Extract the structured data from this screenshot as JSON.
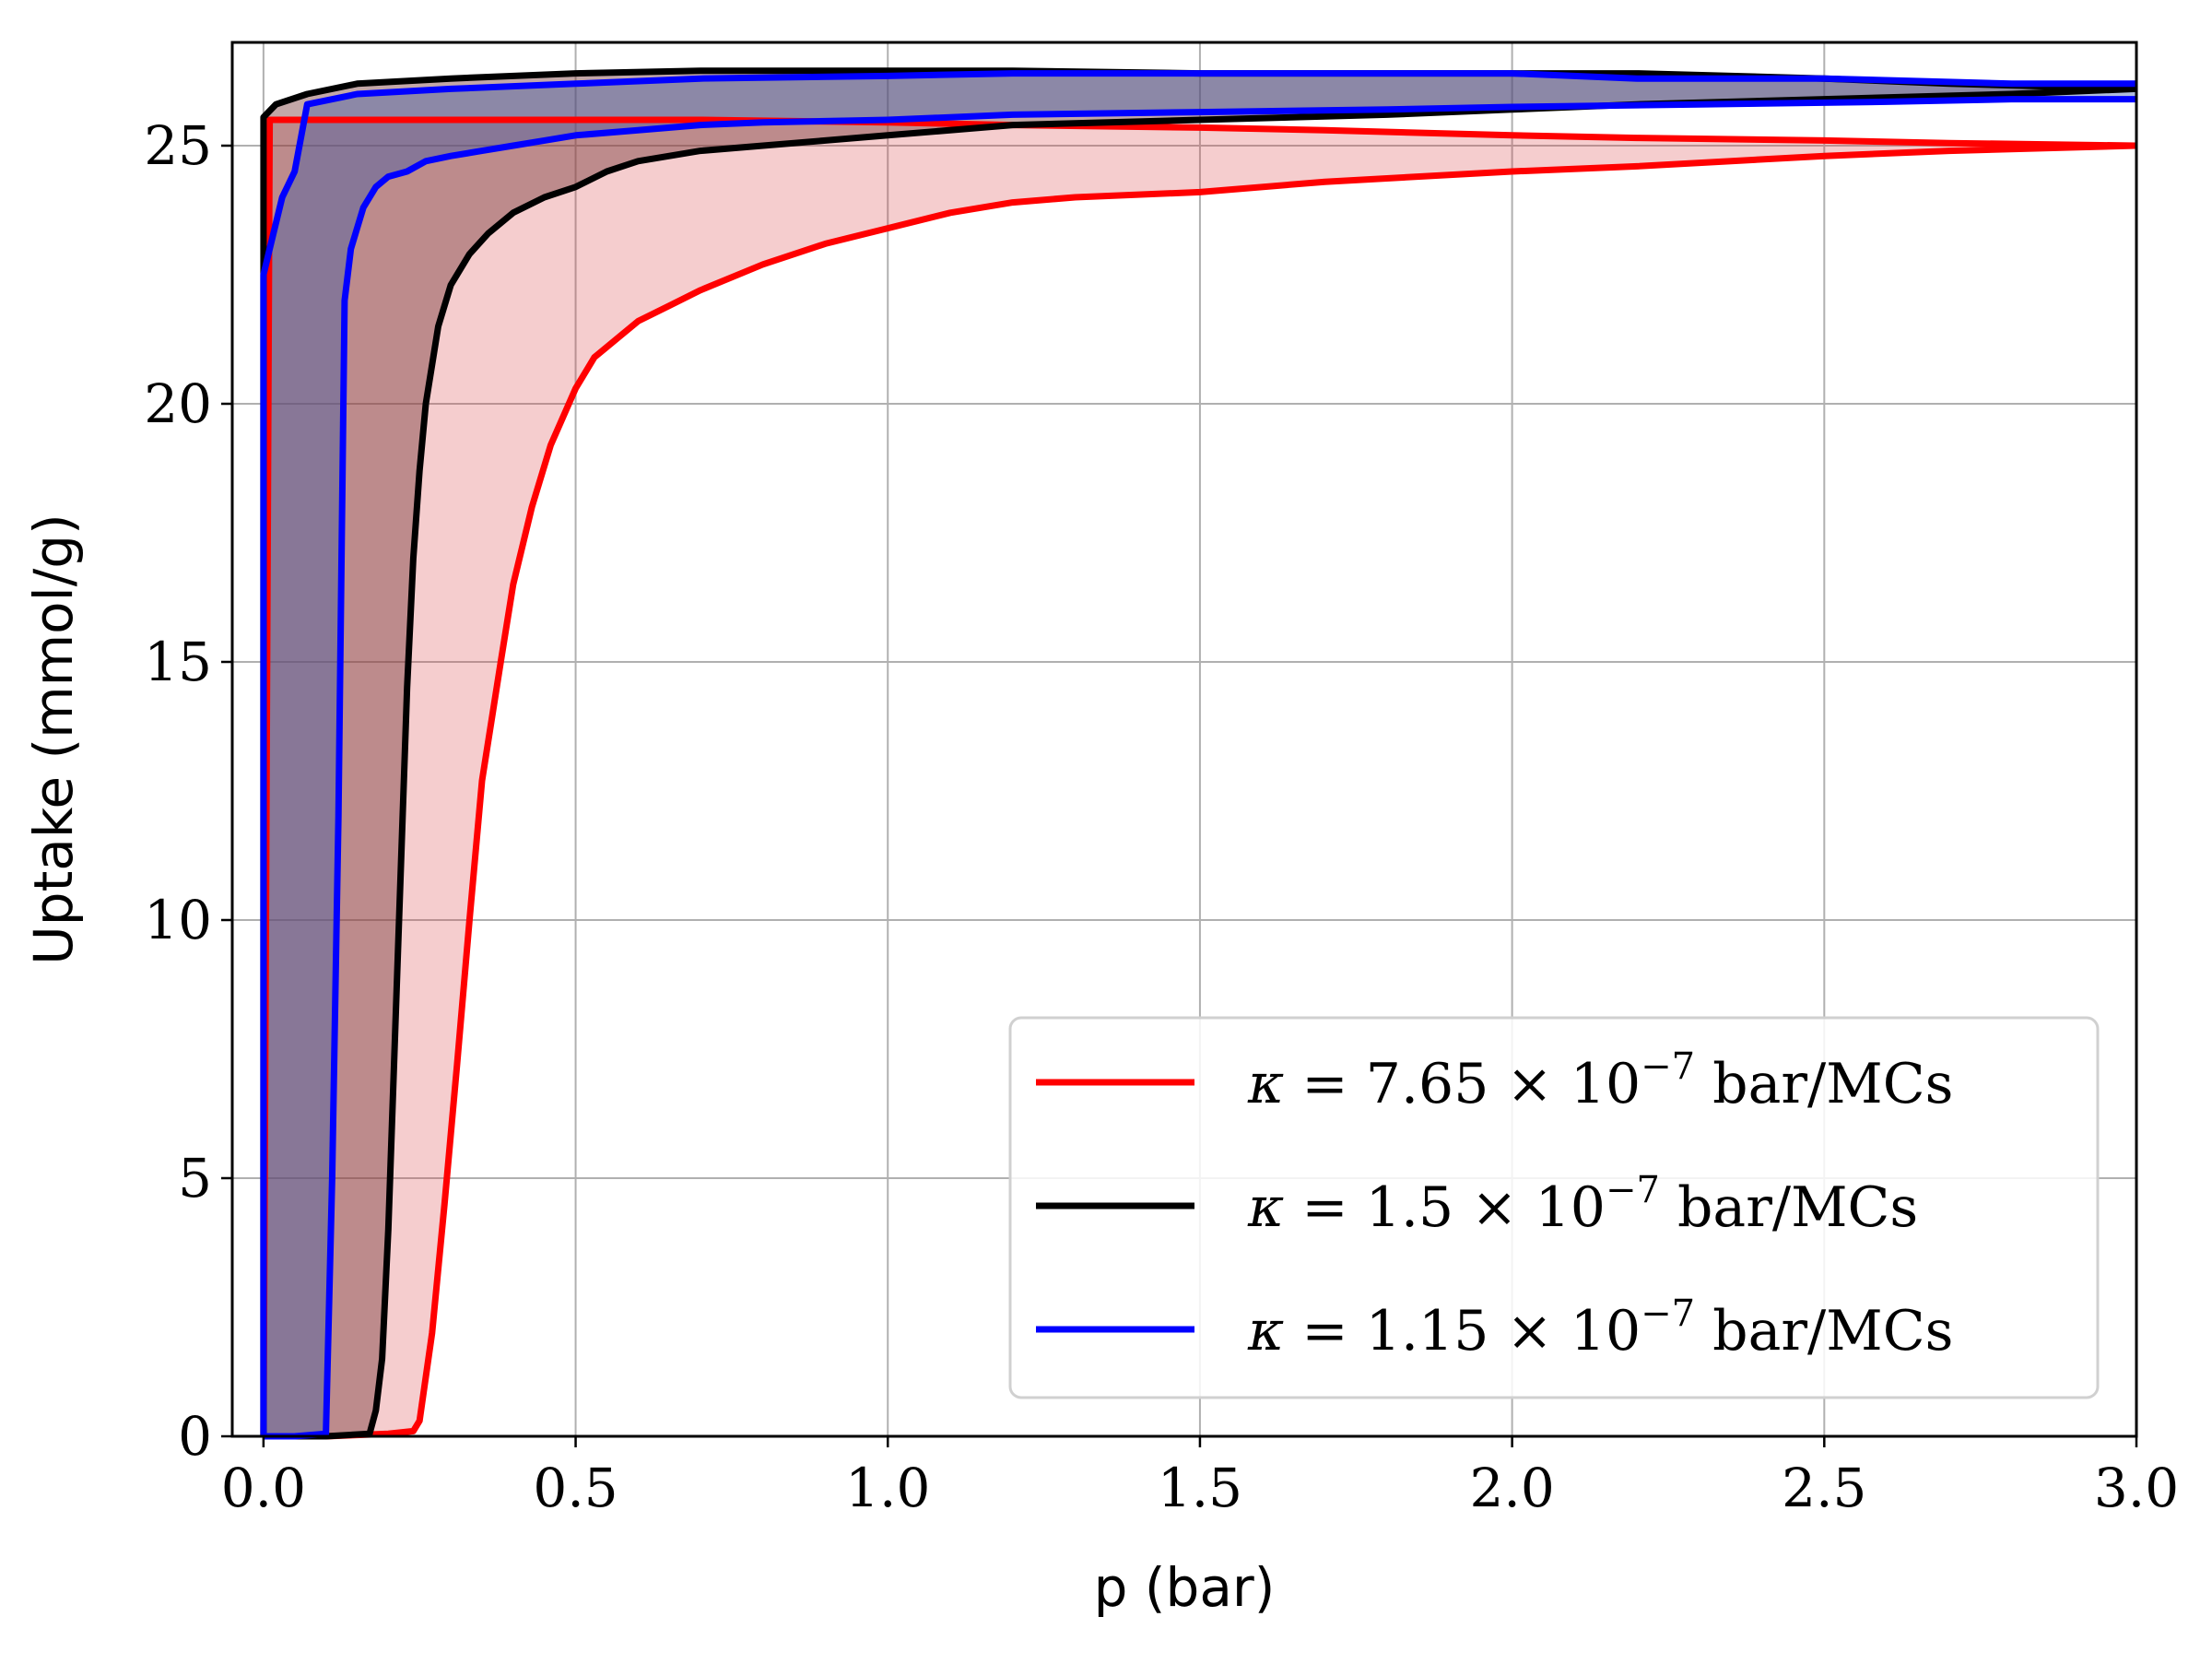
{
  "chart_data": {
    "type": "line",
    "title": "",
    "xlabel": "p (bar)",
    "ylabel": "Uptake (mmol/g)",
    "xlim": [
      -0.05,
      3.0
    ],
    "ylim": [
      0,
      27
    ],
    "x_ticks": [
      0.0,
      0.5,
      1.0,
      1.5,
      2.0,
      2.5,
      3.0
    ],
    "x_tick_labels": [
      "0.0",
      "0.5",
      "1.0",
      "1.5",
      "2.0",
      "2.5",
      "3.0"
    ],
    "y_ticks": [
      0,
      5,
      10,
      15,
      20,
      25
    ],
    "y_tick_labels": [
      "0",
      "5",
      "10",
      "15",
      "20",
      "25"
    ],
    "grid": true,
    "legend_position": "lower-right",
    "series": [
      {
        "name": "κ = 7.65 × 10⁻⁷ bar/MCs",
        "legend": {
          "prefix": "κ = 7.65 × 10",
          "exp": "−7",
          "suffix": " bar/MCs"
        },
        "color": "#ff0000",
        "fill_color": "#d9393a",
        "fill_opacity": 0.25,
        "adsorption": {
          "x": [
            0.0,
            0.1,
            0.2,
            0.24,
            0.25,
            0.27,
            0.29,
            0.31,
            0.33,
            0.35,
            0.38,
            0.4,
            0.43,
            0.46,
            0.5,
            0.53,
            0.57,
            0.6,
            0.65,
            0.7,
            0.8,
            0.9,
            1.0,
            1.1,
            1.2,
            1.3,
            1.5,
            1.7,
            2.0,
            2.2,
            2.5,
            2.7,
            3.0
          ],
          "y": [
            0.0,
            0.0,
            0.05,
            0.1,
            0.3,
            2.0,
            4.5,
            7.2,
            10.0,
            12.7,
            15.0,
            16.5,
            18.0,
            19.2,
            20.3,
            20.9,
            21.3,
            21.6,
            21.9,
            22.2,
            22.7,
            23.1,
            23.4,
            23.7,
            23.9,
            24.0,
            24.1,
            24.3,
            24.5,
            24.6,
            24.8,
            24.9,
            25.0
          ]
        },
        "desorption": {
          "x": [
            3.0,
            2.7,
            2.5,
            2.2,
            2.0,
            1.7,
            1.5,
            1.2,
            1.0,
            0.7,
            0.5,
            0.2,
            0.05,
            0.01,
            0.0
          ],
          "y": [
            25.0,
            25.05,
            25.1,
            25.15,
            25.2,
            25.3,
            25.35,
            25.4,
            25.45,
            25.5,
            25.5,
            25.5,
            25.5,
            25.5,
            0.0
          ]
        }
      },
      {
        "name": "κ = 1.5 × 10⁻⁷ bar/MCs",
        "legend": {
          "prefix": "κ = 1.5 × 10",
          "exp": "−7",
          "suffix": " bar/MCs"
        },
        "color": "#000000",
        "fill_color": "#7a3b3b",
        "fill_opacity": 0.45,
        "adsorption": {
          "x": [
            0.0,
            0.1,
            0.17,
            0.18,
            0.19,
            0.2,
            0.21,
            0.22,
            0.23,
            0.24,
            0.25,
            0.26,
            0.28,
            0.3,
            0.33,
            0.36,
            0.4,
            0.45,
            0.5,
            0.55,
            0.6,
            0.7,
            0.8,
            0.9,
            1.0,
            1.2,
            1.5,
            1.8,
            2.0,
            2.2,
            2.5,
            2.8,
            3.0
          ],
          "y": [
            0.0,
            0.0,
            0.05,
            0.5,
            1.5,
            4.0,
            7.5,
            11.0,
            14.5,
            17.0,
            18.7,
            20.0,
            21.5,
            22.3,
            22.9,
            23.3,
            23.7,
            24.0,
            24.2,
            24.5,
            24.7,
            24.9,
            25.0,
            25.1,
            25.2,
            25.4,
            25.5,
            25.6,
            25.7,
            25.8,
            25.9,
            26.0,
            26.1
          ]
        },
        "desorption": {
          "x": [
            3.0,
            2.7,
            2.5,
            2.2,
            2.0,
            1.7,
            1.5,
            1.2,
            1.0,
            0.7,
            0.5,
            0.3,
            0.15,
            0.07,
            0.02,
            0.0,
            0.0
          ],
          "y": [
            26.1,
            26.2,
            26.3,
            26.4,
            26.4,
            26.4,
            26.4,
            26.45,
            26.45,
            26.45,
            26.4,
            26.3,
            26.2,
            26.0,
            25.8,
            25.55,
            0.0
          ]
        }
      },
      {
        "name": "κ = 1.15 × 10⁻⁷ bar/MCs",
        "legend": {
          "prefix": "κ = 1.15 × 10",
          "exp": "−7",
          "suffix": " bar/MCs"
        },
        "color": "#0000ff",
        "fill_color": "#3a5aa8",
        "fill_opacity": 0.4,
        "adsorption": {
          "x": [
            0.0,
            0.05,
            0.1,
            0.11,
            0.12,
            0.13,
            0.14,
            0.16,
            0.18,
            0.2,
            0.23,
            0.26,
            0.3,
            0.35,
            0.4,
            0.45,
            0.5,
            0.6,
            0.7,
            0.8,
            1.0,
            1.2,
            1.5,
            1.8,
            2.0,
            2.3,
            2.6,
            2.8,
            3.0
          ],
          "y": [
            0.0,
            0.0,
            0.05,
            5.0,
            12.0,
            22.0,
            23.0,
            23.8,
            24.2,
            24.4,
            24.5,
            24.7,
            24.8,
            24.9,
            25.0,
            25.1,
            25.2,
            25.3,
            25.4,
            25.45,
            25.5,
            25.6,
            25.65,
            25.7,
            25.75,
            25.8,
            25.85,
            25.9,
            25.9
          ]
        },
        "desorption": {
          "x": [
            3.0,
            2.8,
            2.5,
            2.2,
            2.0,
            1.8,
            1.5,
            1.2,
            1.0,
            0.7,
            0.5,
            0.3,
            0.15,
            0.07,
            0.05,
            0.03,
            0.01,
            0.0,
            0.0
          ],
          "y": [
            26.2,
            26.2,
            26.3,
            26.3,
            26.4,
            26.4,
            26.4,
            26.4,
            26.35,
            26.3,
            26.2,
            26.1,
            26.0,
            25.8,
            24.5,
            24.0,
            23.0,
            22.5,
            0.0
          ]
        }
      }
    ]
  }
}
